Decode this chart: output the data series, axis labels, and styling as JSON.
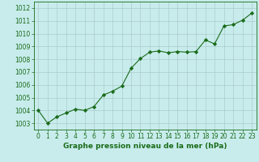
{
  "x": [
    0,
    1,
    2,
    3,
    4,
    5,
    6,
    7,
    8,
    9,
    10,
    11,
    12,
    13,
    14,
    15,
    16,
    17,
    18,
    19,
    20,
    21,
    22,
    23
  ],
  "y": [
    1004.0,
    1003.0,
    1003.5,
    1003.8,
    1004.1,
    1004.0,
    1004.3,
    1005.2,
    1005.5,
    1005.9,
    1007.3,
    1008.05,
    1008.55,
    1008.65,
    1008.5,
    1008.6,
    1008.55,
    1008.6,
    1009.5,
    1009.2,
    1010.6,
    1010.7,
    1011.05,
    1011.6
  ],
  "line_color": "#1a6b1a",
  "marker": "D",
  "marker_size": 2.2,
  "marker_color": "#1a6b1a",
  "bg_color": "#c8ecec",
  "grid_color": "#aacccc",
  "xlabel": "Graphe pression niveau de la mer (hPa)",
  "xlabel_color": "#1a6b1a",
  "xlabel_fontsize": 6.5,
  "tick_color": "#1a6b1a",
  "tick_fontsize": 5.5,
  "ylim": [
    1002.5,
    1012.5
  ],
  "yticks": [
    1003,
    1004,
    1005,
    1006,
    1007,
    1008,
    1009,
    1010,
    1011,
    1012
  ],
  "xlim": [
    -0.5,
    23.5
  ],
  "xticks": [
    0,
    1,
    2,
    3,
    4,
    5,
    6,
    7,
    8,
    9,
    10,
    11,
    12,
    13,
    14,
    15,
    16,
    17,
    18,
    19,
    20,
    21,
    22,
    23
  ]
}
